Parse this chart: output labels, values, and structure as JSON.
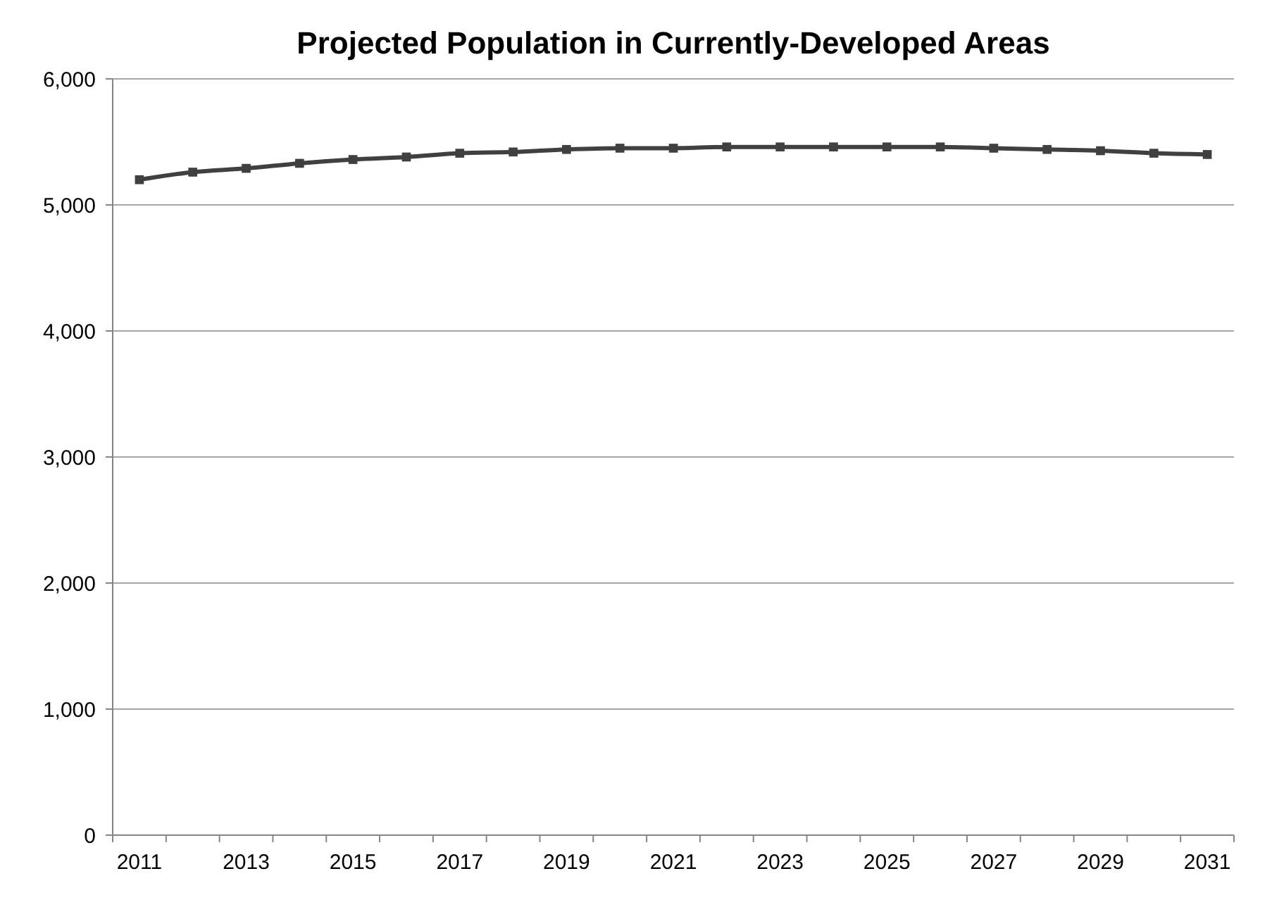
{
  "chart_data": {
    "type": "line",
    "title": "Projected Population in Currently-Developed Areas",
    "categories": [
      "2011",
      null,
      "2013",
      null,
      "2015",
      null,
      "2017",
      null,
      "2019",
      null,
      "2021",
      null,
      "2023",
      null,
      "2025",
      null,
      "2027",
      null,
      "2029",
      null,
      "2031"
    ],
    "series": [
      {
        "color": "#404040",
        "values": [
          5200,
          5260,
          5290,
          5330,
          5360,
          5380,
          5410,
          5420,
          5440,
          5450,
          5450,
          5460,
          5460,
          5460,
          5460,
          5460,
          5450,
          5440,
          5430,
          5410,
          5400
        ]
      }
    ],
    "ylim": [
      0,
      6000
    ],
    "yticks": [
      {
        "value": 0,
        "label": "0"
      },
      {
        "value": 1000,
        "label": "1,000"
      },
      {
        "value": 2000,
        "label": "2,000"
      },
      {
        "value": 3000,
        "label": "3,000"
      },
      {
        "value": 4000,
        "label": "4,000"
      },
      {
        "value": 5000,
        "label": "5,000"
      },
      {
        "value": 6000,
        "label": "6,000"
      }
    ],
    "grid": "y",
    "marker": "square"
  }
}
